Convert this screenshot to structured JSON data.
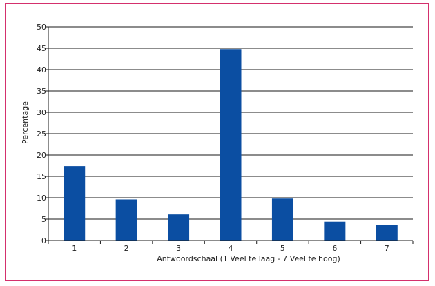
{
  "chart_data": {
    "type": "bar",
    "categories": [
      "1",
      "2",
      "3",
      "4",
      "5",
      "6",
      "7"
    ],
    "values": [
      17.4,
      9.6,
      6.1,
      44.8,
      9.8,
      4.4,
      3.6
    ],
    "xlabel": "Antwoordschaal (1 Veel te laag - 7 Veel te hoog)",
    "ylabel": "Percentage",
    "ylim": [
      0,
      50
    ],
    "yticks": [
      0,
      5,
      10,
      15,
      20,
      25,
      30,
      35,
      40,
      45,
      50
    ],
    "grid": true,
    "legend": "none",
    "colors": {
      "bar": "#0b4ea2",
      "grid": "#1a1a1a",
      "border": "#d4306d"
    }
  }
}
